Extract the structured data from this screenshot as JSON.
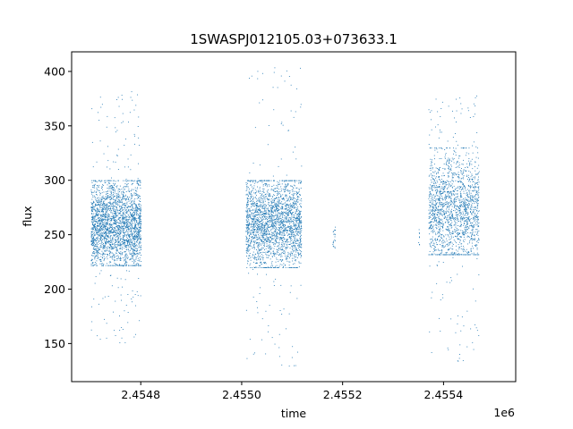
{
  "chart_data": {
    "type": "scatter",
    "title": "1SWASPJ012105.03+073633.1",
    "xlabel": "time",
    "ylabel": "flux",
    "x_offset_label": "1e6",
    "xlim": [
      2454663.0,
      2455543.0
    ],
    "ylim": [
      115,
      418
    ],
    "x_ticks": [
      2454800,
      2455000,
      2455200,
      2455400
    ],
    "x_tick_labels": [
      "2.4548",
      "2.4550",
      "2.4552",
      "2.4554"
    ],
    "y_ticks": [
      150,
      200,
      250,
      300,
      350,
      400
    ],
    "y_tick_labels": [
      "150",
      "200",
      "250",
      "300",
      "350",
      "400"
    ],
    "color": "#1f77b4",
    "grid": false,
    "clusters": [
      {
        "x_start": 2454701,
        "x_end": 2454800,
        "y_low": 222,
        "y_high": 300,
        "y_center": 260,
        "n_points": 2600,
        "outlier_low": 150,
        "outlier_high": 382
      },
      {
        "x_start": 2455008,
        "x_end": 2455118,
        "y_low": 220,
        "y_high": 300,
        "y_center": 262,
        "n_points": 2400,
        "outlier_low": 128,
        "outlier_high": 405
      },
      {
        "x_start": 2455180,
        "x_end": 2455185,
        "y_low": 238,
        "y_high": 262,
        "y_center": 250,
        "n_points": 20,
        "outlier_low": 238,
        "outlier_high": 262
      },
      {
        "x_start": 2455350,
        "x_end": 2455352,
        "y_low": 240,
        "y_high": 255,
        "y_center": 248,
        "n_points": 8,
        "outlier_low": 225,
        "outlier_high": 255
      },
      {
        "x_start": 2455370,
        "x_end": 2455470,
        "y_low": 232,
        "y_high": 330,
        "y_center": 275,
        "n_points": 1800,
        "outlier_low": 133,
        "outlier_high": 378
      }
    ]
  }
}
